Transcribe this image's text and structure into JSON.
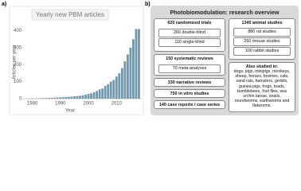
{
  "panel_labels": [
    "a)",
    "b)"
  ],
  "chart_data": {
    "type": "bar",
    "title": "Yearly new PBM articles",
    "xlabel": "Year",
    "ylabel": "Articles per year",
    "x": [
      1980,
      1981,
      1982,
      1983,
      1984,
      1985,
      1986,
      1987,
      1988,
      1989,
      1990,
      1991,
      1992,
      1993,
      1994,
      1995,
      1996,
      1997,
      1998,
      1999,
      2000,
      2001,
      2002,
      2003,
      2004,
      2005,
      2006,
      2007,
      2008,
      2009,
      2010,
      2011,
      2012,
      2013,
      2014,
      2015,
      2016,
      2017,
      2018
    ],
    "values": [
      1,
      2,
      2,
      3,
      3,
      4,
      5,
      5,
      6,
      7,
      8,
      9,
      10,
      11,
      12,
      14,
      15,
      17,
      20,
      24,
      28,
      32,
      38,
      45,
      55,
      60,
      75,
      85,
      100,
      110,
      130,
      150,
      180,
      220,
      260,
      300,
      350,
      410,
      410
    ],
    "color": "#6f98ad",
    "xlim": [
      1977,
      2019
    ],
    "ylim": [
      0,
      440
    ],
    "xticks": [
      1980,
      1990,
      2000,
      2010
    ],
    "yticks": [
      0,
      100,
      200,
      300,
      400
    ],
    "grid": false
  },
  "diagram": {
    "title": "Photobiomodulation: research overview",
    "left": [
      {
        "label": "620 randomized trials",
        "children": [
          "260 double-blind",
          "110 single-blind"
        ]
      },
      {
        "label": "150 systematic reviews",
        "children": [
          "70 meta-analyses"
        ]
      },
      {
        "label": "330 narrative reviews"
      },
      {
        "label": "750 in vitro studies"
      },
      {
        "label": "140 case reports / case series"
      }
    ],
    "right": [
      {
        "label": "1340 animal studies",
        "children": [
          "880 rat studies",
          "260 mouse studies",
          "100 rabbit studies"
        ]
      },
      {
        "label": "Also studied in:",
        "text": "dogs, pigs, minipigs, monkeys, sheep, horses, bovines, cats, sand rats, hamsters, gerbils, guinea pigs, frogs, toads, bumblebees, fruit flies, sea urchin larvae, snails, roundworms, earthworms and flatworms."
      }
    ]
  }
}
